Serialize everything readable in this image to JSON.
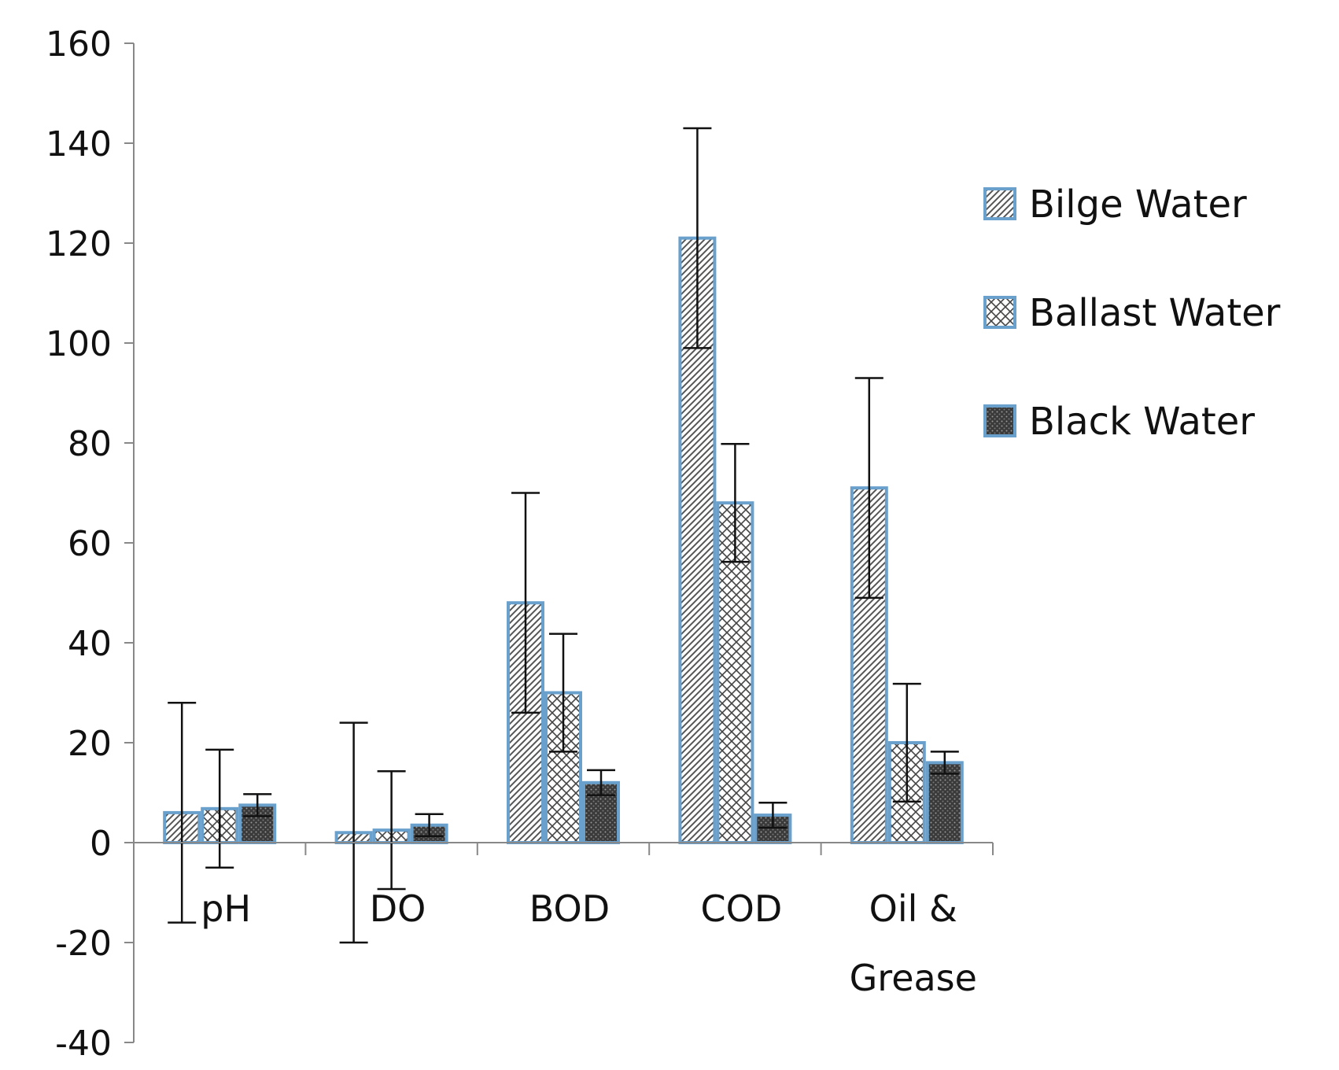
{
  "chart_data": {
    "type": "bar",
    "title": "",
    "xlabel": "",
    "ylabel": "",
    "ylim": [
      -40,
      160
    ],
    "yticks": [
      160,
      140,
      120,
      100,
      80,
      60,
      40,
      20,
      0,
      -20,
      -40
    ],
    "categories": [
      [
        "pH"
      ],
      [
        "DO"
      ],
      [
        "BOD"
      ],
      [
        "COD"
      ],
      [
        "Oil &",
        "Grease"
      ]
    ],
    "series": [
      {
        "name": "Bilge Water",
        "pattern": "diagonal-hatch",
        "values": [
          6,
          2,
          48,
          121,
          71
        ],
        "error": [
          22,
          22,
          22,
          22,
          22
        ]
      },
      {
        "name": "Ballast Water",
        "pattern": "crosshatch",
        "values": [
          6.8,
          2.5,
          30,
          68,
          20
        ],
        "error": [
          11.8,
          11.8,
          11.8,
          11.8,
          11.8
        ]
      },
      {
        "name": "Black Water",
        "pattern": "dense-dots",
        "values": [
          7.5,
          3.5,
          12,
          5.5,
          16
        ],
        "error": [
          2.2,
          2.2,
          2.5,
          2.5,
          2.2
        ]
      }
    ],
    "legend": "right",
    "grid": false,
    "colors": {
      "bar_border": "#6aa0cc",
      "axis": "#888888",
      "error": "#111111"
    }
  }
}
